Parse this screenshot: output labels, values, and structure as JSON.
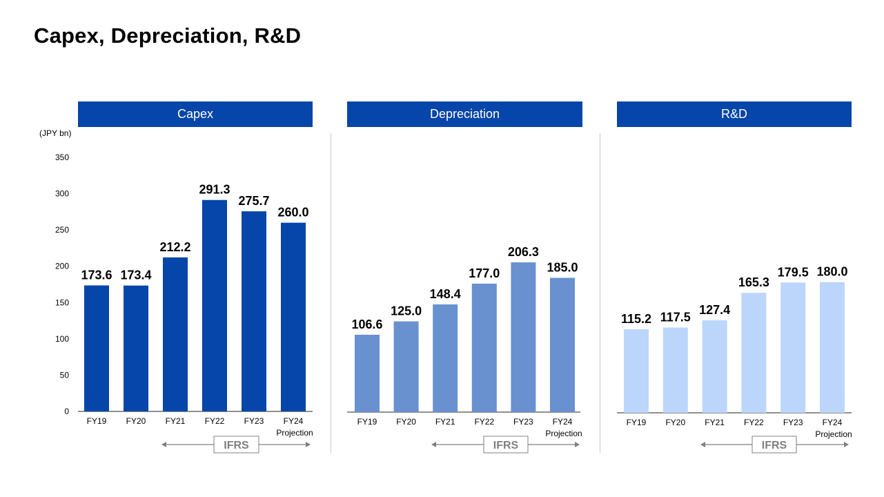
{
  "page": {
    "title": "Capex, Depreciation, R&D"
  },
  "unit_label": "(JPY bn)",
  "y_axis_ticks": [
    "350",
    "300",
    "250",
    "200",
    "150",
    "100",
    "50",
    "0"
  ],
  "ifrs_label": "IFRS",
  "colors": {
    "header": "#0645a9",
    "capex": "#0645a9",
    "depreciation": "#6991cf",
    "rd": "#bcd6fb"
  },
  "chart_data": [
    {
      "type": "bar",
      "title": "Capex",
      "categories": [
        "FY19",
        "FY20",
        "FY21",
        "FY22",
        "FY23",
        "FY24 Projection"
      ],
      "values": [
        173.6,
        173.4,
        212.2,
        291.3,
        275.7,
        260.0
      ],
      "value_labels": [
        "173.6",
        "173.4",
        "212.2",
        "291.3",
        "275.7",
        "260.0"
      ],
      "ylabel": "(JPY bn)",
      "ylim": [
        0,
        350
      ],
      "color": "#0645a9",
      "annotation": "IFRS"
    },
    {
      "type": "bar",
      "title": "Depreciation",
      "categories": [
        "FY19",
        "FY20",
        "FY21",
        "FY22",
        "FY23",
        "FY24 Projection"
      ],
      "values": [
        106.6,
        125.0,
        148.4,
        177.0,
        206.3,
        185.0
      ],
      "value_labels": [
        "106.6",
        "125.0",
        "148.4",
        "177.0",
        "206.3",
        "185.0"
      ],
      "color": "#6991cf",
      "annotation": "IFRS"
    },
    {
      "type": "bar",
      "title": "R&D",
      "categories": [
        "FY19",
        "FY20",
        "FY21",
        "FY22",
        "FY23",
        "FY24 Projection"
      ],
      "values": [
        115.2,
        117.5,
        127.4,
        165.3,
        179.5,
        180.0
      ],
      "value_labels": [
        "115.2",
        "117.5",
        "127.4",
        "165.3",
        "179.5",
        "180.0"
      ],
      "color": "#bcd6fb",
      "annotation": "IFRS"
    }
  ]
}
